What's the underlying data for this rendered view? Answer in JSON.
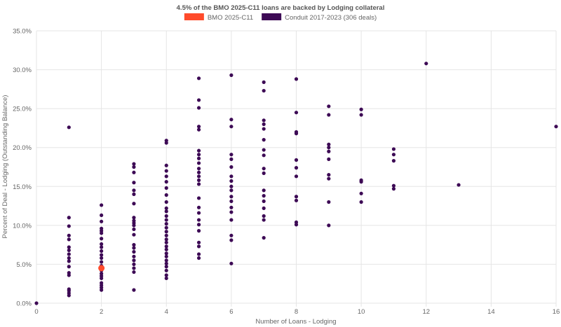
{
  "chart_data": {
    "type": "scatter",
    "title": "4.5% of the BMO 2025-C11 loans are backed by Lodging collateral",
    "xlabel": "Number of Loans - Lodging",
    "ylabel": "Percent of Deal - Lodging (Outstanding Balance)",
    "xlim": [
      0,
      16
    ],
    "ylim": [
      0,
      35
    ],
    "x_ticks": [
      0,
      2,
      4,
      6,
      8,
      10,
      12,
      14,
      16
    ],
    "y_ticks": [
      0,
      5,
      10,
      15,
      20,
      25,
      30,
      35
    ],
    "y_tick_labels": [
      "0.0%",
      "5.0%",
      "10.0%",
      "15.0%",
      "20.0%",
      "25.0%",
      "30.0%",
      "35.0%"
    ],
    "grid": true,
    "legend_position": "top",
    "series": [
      {
        "name": "BMO 2025-C11",
        "color": "#ff4b2b",
        "points": [
          [
            2,
            4.5
          ]
        ]
      },
      {
        "name": "Conduit 2017-2023 (306 deals)",
        "color": "#3d0a55",
        "points": [
          [
            0,
            0.0
          ],
          [
            1,
            22.6
          ],
          [
            1,
            11.0
          ],
          [
            1,
            9.9
          ],
          [
            1,
            8.7
          ],
          [
            1,
            8.2
          ],
          [
            1,
            7.2
          ],
          [
            1,
            6.8
          ],
          [
            1,
            6.3
          ],
          [
            1,
            5.8
          ],
          [
            1,
            5.4
          ],
          [
            1,
            4.7
          ],
          [
            1,
            3.9
          ],
          [
            1,
            3.6
          ],
          [
            1,
            1.8
          ],
          [
            1,
            1.6
          ],
          [
            1,
            1.3
          ],
          [
            1,
            1.0
          ],
          [
            2,
            12.6
          ],
          [
            2,
            11.3
          ],
          [
            2,
            10.5
          ],
          [
            2,
            9.6
          ],
          [
            2,
            9.3
          ],
          [
            2,
            9.0
          ],
          [
            2,
            8.3
          ],
          [
            2,
            7.6
          ],
          [
            2,
            7.2
          ],
          [
            2,
            6.7
          ],
          [
            2,
            6.2
          ],
          [
            2,
            5.8
          ],
          [
            2,
            5.3
          ],
          [
            2,
            4.8
          ],
          [
            2,
            4.2
          ],
          [
            2,
            3.8
          ],
          [
            2,
            3.5
          ],
          [
            2,
            3.2
          ],
          [
            2,
            2.6
          ],
          [
            2,
            2.3
          ],
          [
            2,
            2.0
          ],
          [
            2,
            1.7
          ],
          [
            3,
            17.9
          ],
          [
            3,
            17.5
          ],
          [
            3,
            16.8
          ],
          [
            3,
            15.5
          ],
          [
            3,
            14.5
          ],
          [
            3,
            14.0
          ],
          [
            3,
            12.8
          ],
          [
            3,
            11.0
          ],
          [
            3,
            10.6
          ],
          [
            3,
            10.3
          ],
          [
            3,
            10.0
          ],
          [
            3,
            9.5
          ],
          [
            3,
            8.8
          ],
          [
            3,
            7.5
          ],
          [
            3,
            7.1
          ],
          [
            3,
            6.6
          ],
          [
            3,
            6.0
          ],
          [
            3,
            5.5
          ],
          [
            3,
            5.0
          ],
          [
            3,
            4.5
          ],
          [
            3,
            4.0
          ],
          [
            3,
            1.7
          ],
          [
            4,
            20.9
          ],
          [
            4,
            20.6
          ],
          [
            4,
            17.7
          ],
          [
            4,
            17.0
          ],
          [
            4,
            16.3
          ],
          [
            4,
            15.6
          ],
          [
            4,
            14.8
          ],
          [
            4,
            13.9
          ],
          [
            4,
            13.0
          ],
          [
            4,
            12.2
          ],
          [
            4,
            11.8
          ],
          [
            4,
            11.2
          ],
          [
            4,
            10.7
          ],
          [
            4,
            10.2
          ],
          [
            4,
            9.7
          ],
          [
            4,
            9.2
          ],
          [
            4,
            8.7
          ],
          [
            4,
            8.2
          ],
          [
            4,
            7.8
          ],
          [
            4,
            7.3
          ],
          [
            4,
            6.9
          ],
          [
            4,
            6.4
          ],
          [
            4,
            6.0
          ],
          [
            4,
            5.5
          ],
          [
            4,
            5.1
          ],
          [
            4,
            4.7
          ],
          [
            4,
            4.2
          ],
          [
            4,
            3.6
          ],
          [
            4,
            3.2
          ],
          [
            5,
            28.9
          ],
          [
            5,
            26.1
          ],
          [
            5,
            25.1
          ],
          [
            5,
            22.7
          ],
          [
            5,
            22.3
          ],
          [
            5,
            19.6
          ],
          [
            5,
            19.1
          ],
          [
            5,
            18.6
          ],
          [
            5,
            18.0
          ],
          [
            5,
            17.3
          ],
          [
            5,
            16.8
          ],
          [
            5,
            16.3
          ],
          [
            5,
            15.8
          ],
          [
            5,
            15.3
          ],
          [
            5,
            13.5
          ],
          [
            5,
            12.3
          ],
          [
            5,
            11.6
          ],
          [
            5,
            10.7
          ],
          [
            5,
            10.1
          ],
          [
            5,
            9.3
          ],
          [
            5,
            7.8
          ],
          [
            5,
            7.3
          ],
          [
            5,
            6.3
          ],
          [
            5,
            5.8
          ],
          [
            6,
            29.3
          ],
          [
            6,
            23.6
          ],
          [
            6,
            22.7
          ],
          [
            6,
            19.1
          ],
          [
            6,
            18.5
          ],
          [
            6,
            17.5
          ],
          [
            6,
            16.3
          ],
          [
            6,
            15.7
          ],
          [
            6,
            15.0
          ],
          [
            6,
            14.5
          ],
          [
            6,
            13.7
          ],
          [
            6,
            13.1
          ],
          [
            6,
            12.3
          ],
          [
            6,
            11.7
          ],
          [
            6,
            10.7
          ],
          [
            6,
            8.7
          ],
          [
            6,
            8.1
          ],
          [
            6,
            5.1
          ],
          [
            7,
            28.4
          ],
          [
            7,
            27.3
          ],
          [
            7,
            23.5
          ],
          [
            7,
            23.0
          ],
          [
            7,
            22.4
          ],
          [
            7,
            21.0
          ],
          [
            7,
            19.7
          ],
          [
            7,
            19.0
          ],
          [
            7,
            17.3
          ],
          [
            7,
            16.7
          ],
          [
            7,
            14.5
          ],
          [
            7,
            13.8
          ],
          [
            7,
            13.1
          ],
          [
            7,
            12.2
          ],
          [
            7,
            11.2
          ],
          [
            7,
            10.7
          ],
          [
            7,
            8.4
          ],
          [
            8,
            28.8
          ],
          [
            8,
            24.5
          ],
          [
            8,
            22.0
          ],
          [
            8,
            21.8
          ],
          [
            8,
            18.4
          ],
          [
            8,
            17.4
          ],
          [
            8,
            16.3
          ],
          [
            8,
            13.7
          ],
          [
            8,
            13.2
          ],
          [
            8,
            10.4
          ],
          [
            8,
            10.1
          ],
          [
            9,
            25.3
          ],
          [
            9,
            24.2
          ],
          [
            9,
            20.4
          ],
          [
            9,
            20.0
          ],
          [
            9,
            19.5
          ],
          [
            9,
            18.5
          ],
          [
            9,
            16.5
          ],
          [
            9,
            16.0
          ],
          [
            9,
            13.0
          ],
          [
            9,
            10.0
          ],
          [
            10,
            24.9
          ],
          [
            10,
            24.2
          ],
          [
            10,
            15.8
          ],
          [
            10,
            15.6
          ],
          [
            10,
            14.1
          ],
          [
            10,
            13.0
          ],
          [
            11,
            19.8
          ],
          [
            11,
            19.1
          ],
          [
            11,
            18.3
          ],
          [
            11,
            15.1
          ],
          [
            11,
            14.7
          ],
          [
            12,
            30.8
          ],
          [
            13,
            15.2
          ],
          [
            16,
            22.7
          ]
        ]
      }
    ]
  }
}
